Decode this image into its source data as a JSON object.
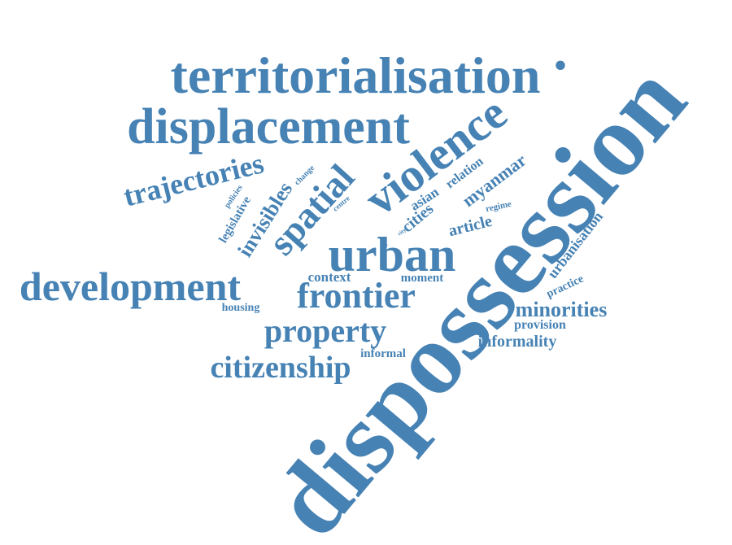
{
  "word_cloud": {
    "color": "#4682B4",
    "words": [
      {
        "id": "dispossession",
        "text": "dispossession"
      },
      {
        "id": "territorialisation",
        "text": "territorialisation"
      },
      {
        "id": "displacement",
        "text": "displacement"
      },
      {
        "id": "development",
        "text": "development"
      },
      {
        "id": "urban",
        "text": "urban"
      },
      {
        "id": "frontier",
        "text": "frontier"
      },
      {
        "id": "property",
        "text": "property"
      },
      {
        "id": "violence",
        "text": "violence"
      },
      {
        "id": "citizenship",
        "text": "citizenship"
      },
      {
        "id": "trajectories",
        "text": "trajectories"
      },
      {
        "id": "spatial",
        "text": "spatial"
      },
      {
        "id": "invisibles",
        "text": "invisibles"
      },
      {
        "id": "minorities",
        "text": "minorities"
      },
      {
        "id": "myanmar",
        "text": "myanmar"
      },
      {
        "id": "urbanisation",
        "text": "urbanisation"
      },
      {
        "id": "informality",
        "text": "informality"
      },
      {
        "id": "article",
        "text": "article"
      },
      {
        "id": "cities",
        "text": "cities"
      },
      {
        "id": "relation",
        "text": "relation"
      },
      {
        "id": "context",
        "text": "context"
      },
      {
        "id": "provision",
        "text": "provision"
      },
      {
        "id": "legislative",
        "text": "legislative"
      },
      {
        "id": "asian",
        "text": "asian"
      },
      {
        "id": "moment",
        "text": "moment"
      },
      {
        "id": "informal",
        "text": "informal"
      },
      {
        "id": "practice",
        "text": "practice"
      },
      {
        "id": "housing",
        "text": "housing"
      },
      {
        "id": "policies",
        "text": "policies"
      },
      {
        "id": "change",
        "text": "change"
      },
      {
        "id": "regime",
        "text": "regime"
      },
      {
        "id": "centre",
        "text": "centre"
      },
      {
        "id": "city",
        "text": "city"
      },
      {
        "id": "lm",
        "text": "lm"
      },
      {
        "id": "dot",
        "text": "."
      }
    ]
  }
}
